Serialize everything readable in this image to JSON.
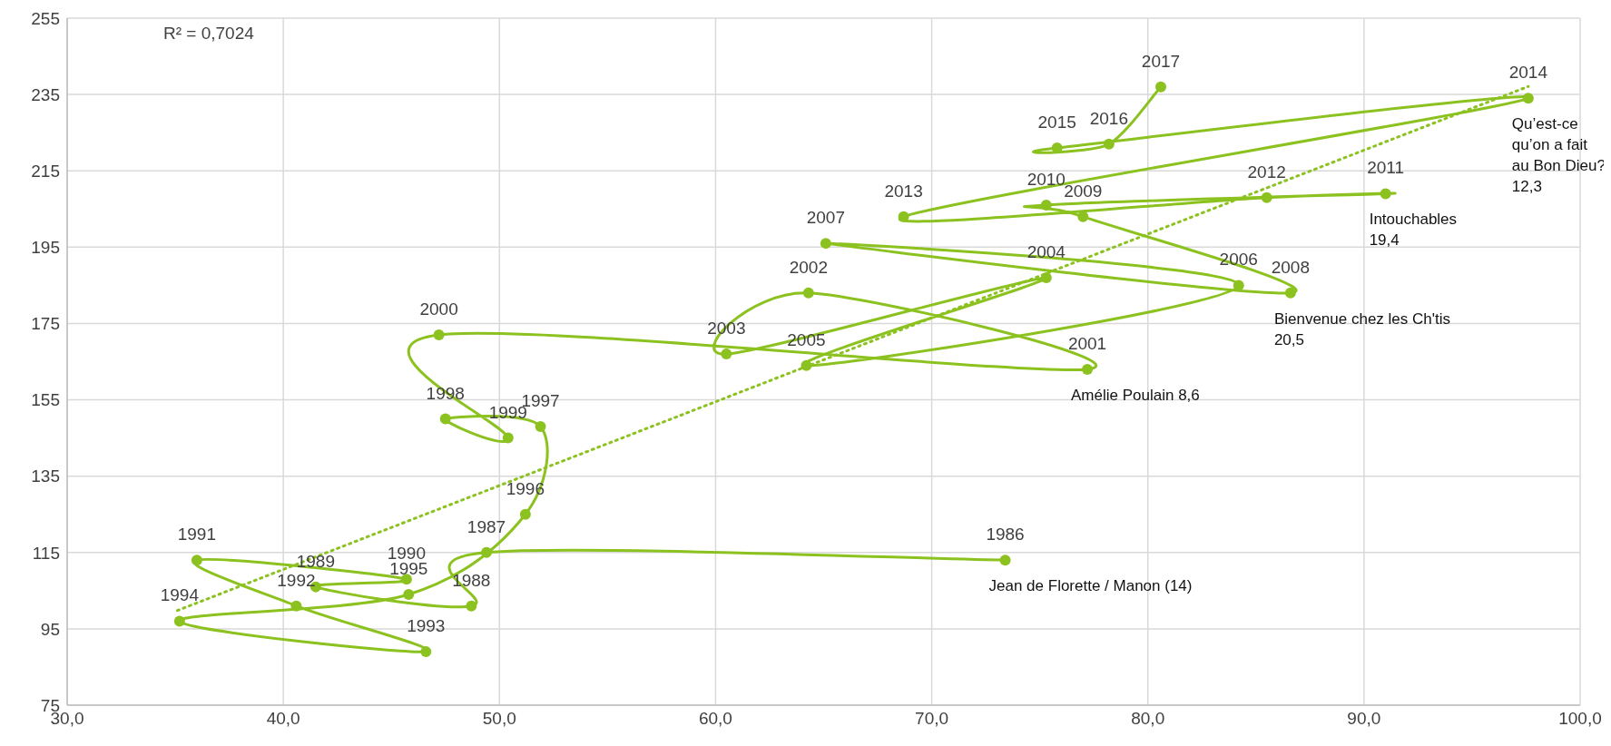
{
  "chart_data": {
    "type": "line",
    "grid": true,
    "legend": false,
    "xlim": [
      30,
      100
    ],
    "xticks": [
      {
        "value": 30,
        "label": "30,0"
      },
      {
        "value": 40,
        "label": "40,0"
      },
      {
        "value": 50,
        "label": "50,0"
      },
      {
        "value": 60,
        "label": "60,0"
      },
      {
        "value": 70,
        "label": "70,0"
      },
      {
        "value": 80,
        "label": "80,0"
      },
      {
        "value": 90,
        "label": "90,0"
      },
      {
        "value": 100,
        "label": "100,0"
      }
    ],
    "ylim": [
      75,
      255
    ],
    "yticks": [
      75,
      95,
      115,
      135,
      155,
      175,
      195,
      215,
      235,
      255
    ],
    "series": [
      {
        "type": "line",
        "color": "#8cc21f",
        "marker": "circle",
        "line_style": "solid",
        "x": [
          73.4,
          49.4,
          48.7,
          41.5,
          45.7,
          36.0,
          40.6,
          46.6,
          35.2,
          45.8,
          51.2,
          51.9,
          47.5,
          50.4,
          47.2,
          77.2,
          64.3,
          60.5,
          75.3,
          64.2,
          84.2,
          65.1,
          86.6,
          77.0,
          75.3,
          91.0,
          85.5,
          68.7,
          97.6,
          75.8,
          78.2,
          80.6
        ],
        "values": [
          113,
          115,
          101,
          106,
          108,
          113,
          101,
          89,
          97,
          104,
          125,
          148,
          150,
          145,
          172,
          163,
          183,
          167,
          187,
          164,
          185,
          196,
          183,
          203,
          206,
          209,
          208,
          203,
          234,
          221,
          222,
          237
        ]
      },
      {
        "type": "line",
        "color": "#8cc21f",
        "marker": "none",
        "line_style": "dotted",
        "x": [
          35.1,
          97.6
        ],
        "values": [
          99.8,
          237.1
        ]
      }
    ],
    "annotations": [
      "R² = 0,7024",
      {
        "text": "1986",
        "x": 73.4,
        "y": 113
      },
      {
        "text": "1987",
        "x": 49.4,
        "y": 115
      },
      {
        "text": "1988",
        "x": 48.7,
        "y": 101
      },
      {
        "text": "1989",
        "x": 41.5,
        "y": 106
      },
      {
        "text": "1990",
        "x": 45.7,
        "y": 108
      },
      {
        "text": "1991",
        "x": 36.0,
        "y": 113
      },
      {
        "text": "1992",
        "x": 40.6,
        "y": 101
      },
      {
        "text": "1993",
        "x": 46.6,
        "y": 89
      },
      {
        "text": "1994",
        "x": 35.2,
        "y": 97
      },
      {
        "text": "1995",
        "x": 45.8,
        "y": 104
      },
      {
        "text": "1996",
        "x": 51.2,
        "y": 125
      },
      {
        "text": "1997",
        "x": 51.9,
        "y": 148
      },
      {
        "text": "1998",
        "x": 47.5,
        "y": 150
      },
      {
        "text": "1999",
        "x": 50.4,
        "y": 145
      },
      {
        "text": "2000",
        "x": 47.2,
        "y": 172
      },
      {
        "text": "2001",
        "x": 77.2,
        "y": 163
      },
      {
        "text": "2002",
        "x": 64.3,
        "y": 183
      },
      {
        "text": "2003",
        "x": 60.5,
        "y": 167
      },
      {
        "text": "2004",
        "x": 75.3,
        "y": 187
      },
      {
        "text": "2005",
        "x": 64.2,
        "y": 164
      },
      {
        "text": "2006",
        "x": 84.2,
        "y": 185
      },
      {
        "text": "2007",
        "x": 65.1,
        "y": 196
      },
      {
        "text": "2008",
        "x": 86.6,
        "y": 183
      },
      {
        "text": "2009",
        "x": 77.0,
        "y": 203
      },
      {
        "text": "2010",
        "x": 75.3,
        "y": 206
      },
      {
        "text": "2011",
        "x": 91.0,
        "y": 209
      },
      {
        "text": "2012",
        "x": 85.5,
        "y": 208
      },
      {
        "text": "2013",
        "x": 68.7,
        "y": 203
      },
      {
        "text": "2014",
        "x": 97.6,
        "y": 234
      },
      {
        "text": "2015",
        "x": 75.8,
        "y": 221
      },
      {
        "text": "2016",
        "x": 78.2,
        "y": 222
      },
      {
        "text": "2017",
        "x": 80.6,
        "y": 237
      },
      {
        "text": "Jean de Florette / Manon  (14)",
        "x": 73.4,
        "y": 113
      },
      {
        "text": "Amélie Poulain 8,6",
        "x": 77.2,
        "y": 163
      },
      {
        "text": "Bienvenue chez les Ch'tis\n20,5",
        "x": 86.6,
        "y": 183
      },
      {
        "text": "Intouchables\n19,4",
        "x": 91.0,
        "y": 209
      },
      {
        "text": "Qu’est-ce\nqu’on a fait\nau Bon Dieu?\n12,3",
        "x": 97.6,
        "y": 234
      }
    ]
  }
}
